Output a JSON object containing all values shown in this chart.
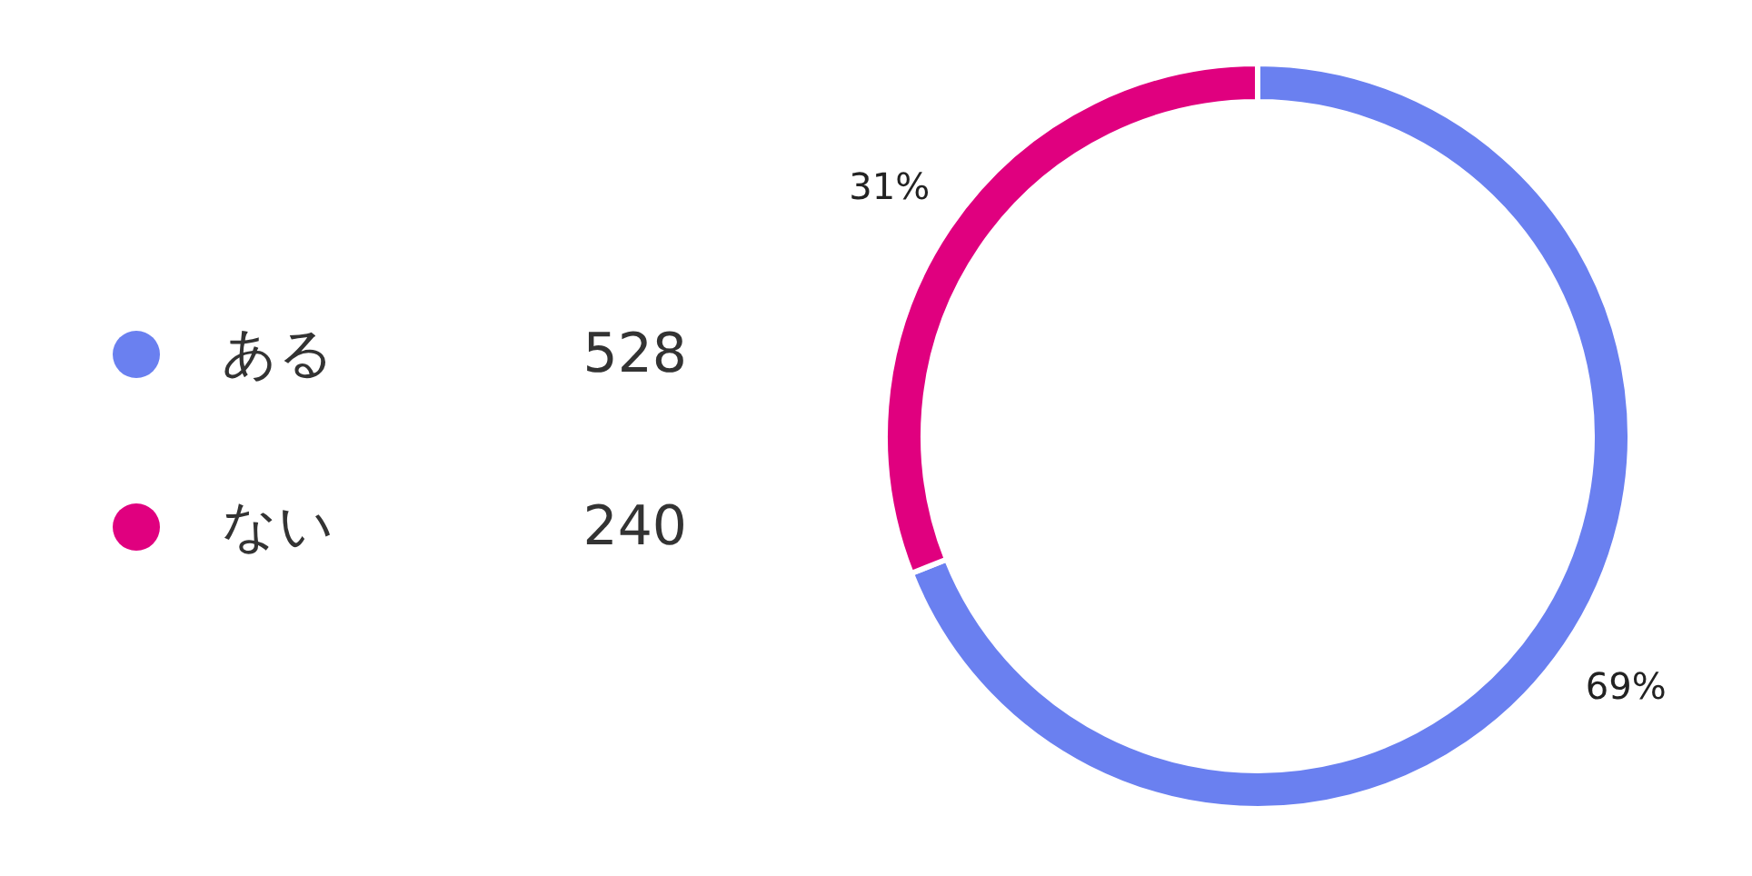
{
  "chart_data": {
    "type": "donut",
    "categories": [
      "ある",
      "ない"
    ],
    "values": [
      69,
      31
    ],
    "colors": [
      "#6a80f0",
      "#e0007f"
    ],
    "value_labels": [
      "69%",
      "31%"
    ],
    "annotations": [
      "528",
      "240"
    ],
    "legend": "left"
  }
}
